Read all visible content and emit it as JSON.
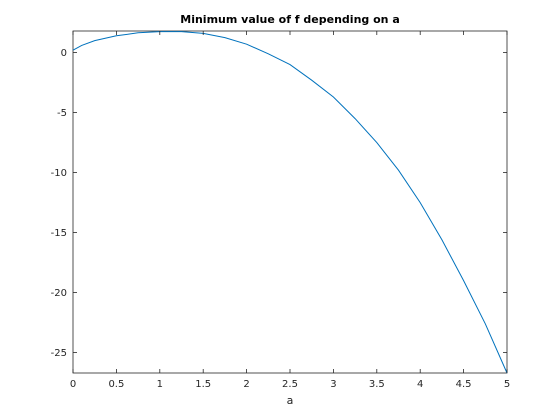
{
  "chart_data": {
    "type": "line",
    "title": "Minimum value of f depending on a",
    "xlabel": "a",
    "ylabel": "",
    "xlim": [
      0,
      5
    ],
    "ylim": [
      -26.7,
      1.8
    ],
    "xticks": [
      0,
      0.5,
      1,
      1.5,
      2,
      2.5,
      3,
      3.5,
      4,
      4.5,
      5
    ],
    "xtick_labels": [
      "0",
      "0.5",
      "1",
      "1.5",
      "2",
      "2.5",
      "3",
      "3.5",
      "4",
      "4.5",
      "5"
    ],
    "yticks": [
      0,
      -5,
      -10,
      -15,
      -20,
      -25
    ],
    "ytick_labels": [
      "0",
      "-5",
      "-10",
      "-15",
      "-20",
      "-25"
    ],
    "grid": false,
    "box": true,
    "series": [
      {
        "color": "#0072bd",
        "x": [
          0,
          0.1,
          0.25,
          0.5,
          0.75,
          1.0,
          1.25,
          1.5,
          1.75,
          2.0,
          2.25,
          2.5,
          2.75,
          3.0,
          3.25,
          3.5,
          3.75,
          4.0,
          4.25,
          4.5,
          4.75,
          5.0
        ],
        "y": [
          0.2,
          0.6,
          1.0,
          1.4,
          1.65,
          1.75,
          1.75,
          1.6,
          1.25,
          0.7,
          -0.1,
          -1.0,
          -2.3,
          -3.7,
          -5.5,
          -7.5,
          -9.8,
          -12.5,
          -15.6,
          -19.0,
          -22.6,
          -26.7
        ]
      }
    ]
  }
}
